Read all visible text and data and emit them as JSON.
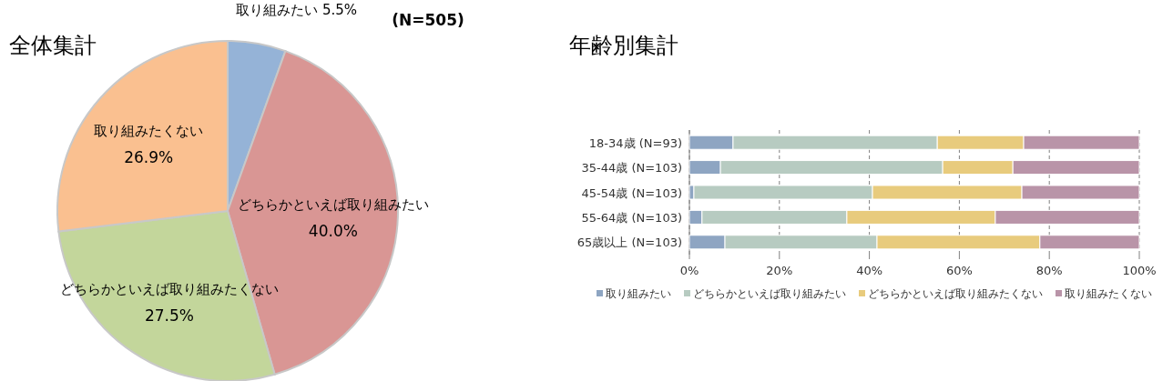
{
  "chart_data": [
    {
      "type": "pie",
      "title": "全体集計",
      "annotations": [
        "(N=505)"
      ],
      "categories": [
        "取り組みたい",
        "どちらかといえば取り組みたい",
        "どちらかといえば取り組みたくない",
        "取り組みたくない"
      ],
      "values": [
        5.5,
        40.0,
        27.5,
        26.9
      ],
      "value_labels": [
        "5.5%",
        "40.0%",
        "27.5%",
        "26.9%"
      ],
      "colors": [
        "#95b3d7",
        "#d99694",
        "#c3d69b",
        "#fac090"
      ]
    },
    {
      "type": "bar",
      "title": "年齢別集計",
      "orientation": "horizontal",
      "stacked": true,
      "grid": "x",
      "legend": "bottom",
      "categories": [
        "18-34歳 (N=93)",
        "35-44歳 (N=103)",
        "45-54歳 (N=103)",
        "55-64歳 (N=103)",
        "65歳以上 (N=103)"
      ],
      "xlim": [
        0,
        100
      ],
      "xticks": [
        {
          "value": 0,
          "label": "0%"
        },
        {
          "value": 20,
          "label": "20%"
        },
        {
          "value": 40,
          "label": "40%"
        },
        {
          "value": 60,
          "label": "60%"
        },
        {
          "value": 80,
          "label": "80%"
        },
        {
          "value": 100,
          "label": "100%"
        }
      ],
      "series": [
        {
          "name": "取り組みたい",
          "color": "#8ea5c2",
          "values": [
            9.7,
            6.9,
            1.0,
            2.8,
            7.9
          ]
        },
        {
          "name": "どちらかといえば取り組みたい",
          "color": "#b7cbc1",
          "values": [
            45.4,
            49.4,
            39.7,
            32.2,
            33.8
          ]
        },
        {
          "name": "どちらかといえば取り組みたくない",
          "color": "#e8cb7d",
          "values": [
            19.2,
            15.6,
            33.2,
            33.0,
            36.2
          ]
        },
        {
          "name": "取り組みたくない",
          "color": "#b994a8",
          "values": [
            25.7,
            28.1,
            26.1,
            32.0,
            22.1
          ]
        }
      ]
    }
  ]
}
